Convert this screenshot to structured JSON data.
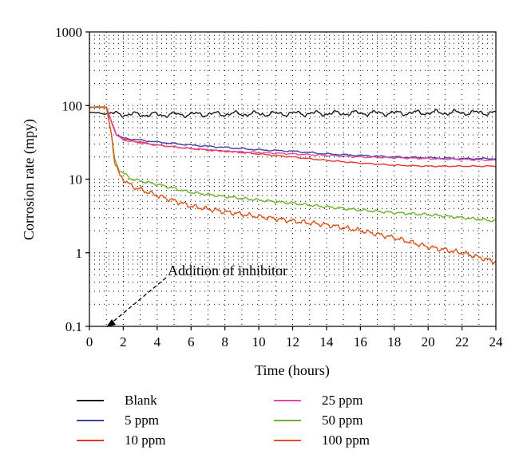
{
  "chart_data": {
    "type": "line",
    "xlabel": "Time (hours)",
    "ylabel": "Corrosion rate (mpy)",
    "xlim": [
      0,
      24
    ],
    "ylim": [
      0.1,
      1000
    ],
    "y_scale": "log",
    "x_ticks": [
      "0",
      "2",
      "4",
      "6",
      "8",
      "10",
      "12",
      "14",
      "16",
      "18",
      "20",
      "22",
      "24"
    ],
    "y_ticks": [
      "0.1",
      "1",
      "10",
      "100",
      "1000"
    ],
    "grid": "dotted",
    "legend_position": "bottom",
    "annotation": {
      "text": "Addition of inhibitor",
      "points_to": [
        1,
        0.1
      ]
    },
    "series": [
      {
        "name": "Blank",
        "color": "#1a1a1a",
        "x": [
          0,
          1,
          2,
          4,
          6,
          8,
          10,
          12,
          14,
          16,
          18,
          20,
          22,
          24
        ],
        "y": [
          80,
          78,
          76,
          75,
          76,
          77,
          77,
          78,
          78,
          79,
          79,
          80,
          80,
          80
        ]
      },
      {
        "name": "5 ppm",
        "color": "#3b3fa6",
        "x": [
          0,
          1,
          1.3,
          1.6,
          2,
          3,
          4,
          6,
          8,
          10,
          12,
          14,
          16,
          18,
          20,
          22,
          24
        ],
        "y": [
          95,
          95,
          60,
          40,
          36,
          34,
          32,
          29,
          27,
          25,
          24,
          22,
          21,
          20,
          19.5,
          19,
          19
        ]
      },
      {
        "name": "10 ppm",
        "color": "#e8342a",
        "x": [
          0,
          1,
          1.3,
          1.6,
          2,
          3,
          4,
          6,
          8,
          10,
          12,
          14,
          16,
          18,
          20,
          22,
          24
        ],
        "y": [
          95,
          95,
          60,
          40,
          35,
          32,
          29,
          26,
          24,
          22,
          20,
          18,
          16.5,
          15.5,
          15,
          15,
          15
        ]
      },
      {
        "name": "25 ppm",
        "color": "#e8489c",
        "x": [
          0,
          1,
          1.3,
          1.6,
          2,
          3,
          4,
          6,
          8,
          10,
          12,
          14,
          16,
          18,
          20,
          22,
          24
        ],
        "y": [
          95,
          95,
          60,
          40,
          34,
          31,
          29,
          26,
          24,
          23,
          22,
          21,
          20,
          19.5,
          19,
          18.5,
          18
        ]
      },
      {
        "name": "50 ppm",
        "color": "#6ab42d",
        "x": [
          0,
          1,
          1.3,
          1.5,
          1.8,
          2.5,
          4,
          6,
          8,
          10,
          12,
          14,
          16,
          18,
          20,
          22,
          24
        ],
        "y": [
          95,
          95,
          40,
          18,
          13,
          10,
          8.5,
          6.6,
          5.8,
          5.2,
          4.7,
          4.2,
          3.8,
          3.5,
          3.3,
          3.0,
          2.7
        ]
      },
      {
        "name": "100 ppm",
        "color": "#d9561a",
        "x": [
          0,
          1,
          1.3,
          1.5,
          1.8,
          2.5,
          4,
          6,
          8,
          10,
          12,
          14,
          16,
          18,
          20,
          22,
          24
        ],
        "y": [
          95,
          95,
          40,
          17,
          11,
          8.0,
          6.0,
          4.3,
          3.6,
          3.1,
          2.7,
          2.4,
          2.0,
          1.6,
          1.2,
          1.0,
          0.75
        ]
      }
    ]
  }
}
